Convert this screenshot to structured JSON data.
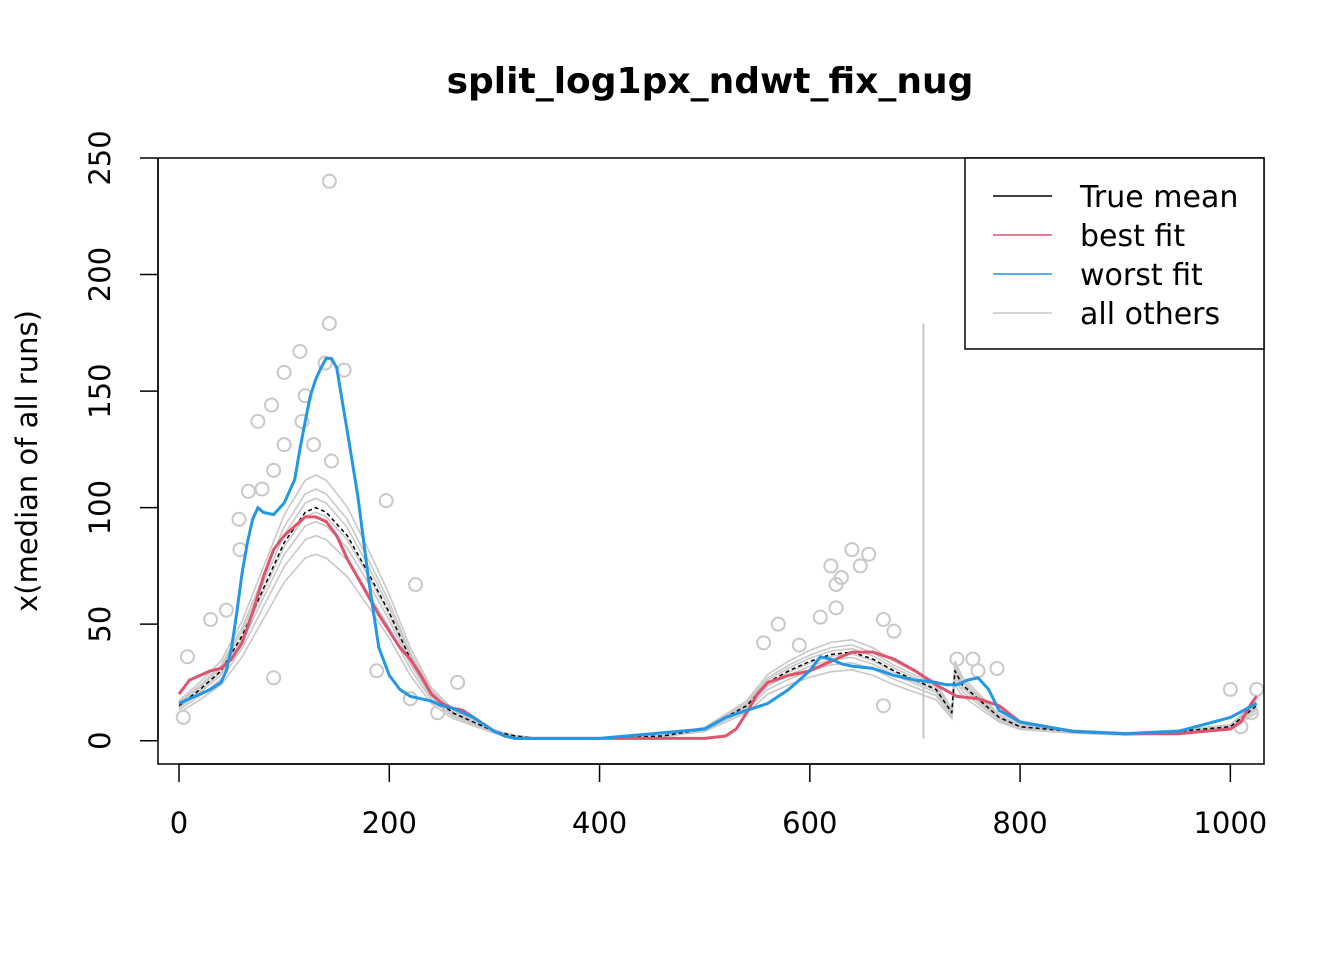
{
  "chart_data": {
    "type": "line",
    "title": "split_log1px_ndwt_fix_nug",
    "xlabel": "",
    "ylabel": "x(median of all runs)",
    "xlim": [
      -20,
      1032
    ],
    "ylim": [
      -10,
      250
    ],
    "x_ticks": [
      0,
      200,
      400,
      600,
      800,
      1000
    ],
    "y_ticks": [
      0,
      50,
      100,
      150,
      200,
      250
    ],
    "x_tick_labels": [
      "0",
      "200",
      "400",
      "600",
      "800",
      "1000"
    ],
    "y_tick_labels": [
      "0",
      "50",
      "100",
      "150",
      "200",
      "250"
    ],
    "grid": false,
    "legend_position": "top-right",
    "legend": [
      {
        "label": "True mean",
        "color": "#000000"
      },
      {
        "label": "best fit",
        "color": "#DF536B"
      },
      {
        "label": "worst fit",
        "color": "#2297E6"
      },
      {
        "label": "all others",
        "color": "#C8C8C8"
      }
    ],
    "series": [
      {
        "name": "True mean",
        "color": "#000000",
        "style": "dashed",
        "x": [
          0,
          20,
          40,
          60,
          80,
          100,
          120,
          130,
          140,
          160,
          180,
          200,
          220,
          240,
          260,
          280,
          300,
          320,
          340,
          400,
          460,
          500,
          540,
          560,
          580,
          600,
          620,
          640,
          660,
          680,
          700,
          720,
          735,
          738,
          745,
          760,
          780,
          800,
          850,
          900,
          950,
          1000,
          1025
        ],
        "y": [
          15,
          22,
          30,
          45,
          65,
          85,
          98,
          100,
          98,
          88,
          72,
          55,
          35,
          20,
          12,
          8,
          4,
          2,
          1,
          1,
          2,
          5,
          15,
          25,
          30,
          34,
          37,
          38,
          35,
          30,
          26,
          22,
          12,
          30,
          24,
          18,
          10,
          6,
          4,
          3,
          4,
          6,
          15
        ]
      },
      {
        "name": "best fit",
        "color": "#DF536B",
        "style": "solid",
        "x": [
          0,
          10,
          20,
          30,
          40,
          50,
          60,
          70,
          80,
          90,
          100,
          110,
          120,
          130,
          140,
          150,
          160,
          170,
          180,
          190,
          200,
          210,
          220,
          230,
          240,
          250,
          260,
          270,
          280,
          290,
          300,
          310,
          320,
          340,
          360,
          400,
          450,
          500,
          520,
          530,
          540,
          550,
          560,
          580,
          600,
          620,
          640,
          660,
          680,
          700,
          720,
          740,
          760,
          780,
          800,
          850,
          900,
          950,
          1000,
          1010,
          1015,
          1020,
          1025
        ],
        "y": [
          20,
          26,
          28,
          30,
          31,
          35,
          42,
          55,
          70,
          82,
          88,
          92,
          96,
          96,
          94,
          88,
          78,
          70,
          62,
          54,
          47,
          40,
          35,
          28,
          20,
          16,
          14,
          13,
          10,
          7,
          4,
          2,
          1,
          1,
          1,
          1,
          1,
          1,
          2,
          5,
          12,
          20,
          25,
          28,
          30,
          34,
          38,
          38,
          35,
          30,
          24,
          19,
          18,
          15,
          8,
          4,
          3,
          3,
          5,
          8,
          12,
          16,
          19
        ]
      },
      {
        "name": "worst fit",
        "color": "#2297E6",
        "style": "solid",
        "x": [
          0,
          10,
          20,
          30,
          40,
          45,
          50,
          55,
          60,
          65,
          70,
          75,
          80,
          90,
          100,
          110,
          115,
          120,
          125,
          130,
          135,
          140,
          145,
          150,
          160,
          170,
          180,
          190,
          200,
          210,
          220,
          230,
          240,
          250,
          260,
          270,
          280,
          290,
          300,
          310,
          320,
          340,
          360,
          400,
          450,
          500,
          520,
          540,
          560,
          580,
          600,
          610,
          620,
          630,
          640,
          660,
          680,
          700,
          720,
          730,
          740,
          750,
          760,
          770,
          780,
          800,
          850,
          900,
          950,
          1000,
          1025
        ],
        "y": [
          16,
          18,
          20,
          22,
          25,
          30,
          40,
          55,
          72,
          85,
          95,
          100,
          98,
          97,
          102,
          112,
          125,
          137,
          148,
          155,
          160,
          164,
          164,
          160,
          133,
          105,
          70,
          40,
          28,
          22,
          19,
          18,
          17,
          15,
          14,
          12,
          10,
          7,
          4,
          2,
          1,
          1,
          1,
          1,
          3,
          5,
          10,
          13,
          16,
          22,
          30,
          36,
          35,
          33,
          32,
          31,
          28,
          26,
          25,
          24,
          24,
          26,
          27,
          22,
          13,
          8,
          4,
          3,
          4,
          10,
          16
        ]
      }
    ],
    "others": {
      "name": "all others",
      "color": "#C8C8C8",
      "scatter": [
        {
          "x": 143,
          "y": 240
        },
        {
          "x": 143,
          "y": 179
        },
        {
          "x": 139,
          "y": 162
        },
        {
          "x": 157,
          "y": 159
        },
        {
          "x": 115,
          "y": 167
        },
        {
          "x": 100,
          "y": 158
        },
        {
          "x": 88,
          "y": 144
        },
        {
          "x": 120,
          "y": 148
        },
        {
          "x": 117,
          "y": 137
        },
        {
          "x": 75,
          "y": 137
        },
        {
          "x": 100,
          "y": 127
        },
        {
          "x": 128,
          "y": 127
        },
        {
          "x": 145,
          "y": 120
        },
        {
          "x": 90,
          "y": 116
        },
        {
          "x": 66,
          "y": 107
        },
        {
          "x": 79,
          "y": 108
        },
        {
          "x": 197,
          "y": 103
        },
        {
          "x": 57,
          "y": 95
        },
        {
          "x": 58,
          "y": 82
        },
        {
          "x": 90,
          "y": 27
        },
        {
          "x": 188,
          "y": 30
        },
        {
          "x": 225,
          "y": 67
        },
        {
          "x": 220,
          "y": 18
        },
        {
          "x": 246,
          "y": 12
        },
        {
          "x": 8,
          "y": 36
        },
        {
          "x": 4,
          "y": 10
        },
        {
          "x": 30,
          "y": 52
        },
        {
          "x": 45,
          "y": 56
        },
        {
          "x": 265,
          "y": 25
        },
        {
          "x": 556,
          "y": 42
        },
        {
          "x": 570,
          "y": 50
        },
        {
          "x": 590,
          "y": 41
        },
        {
          "x": 620,
          "y": 75
        },
        {
          "x": 625,
          "y": 67
        },
        {
          "x": 630,
          "y": 70
        },
        {
          "x": 640,
          "y": 82
        },
        {
          "x": 648,
          "y": 75
        },
        {
          "x": 656,
          "y": 80
        },
        {
          "x": 610,
          "y": 53
        },
        {
          "x": 625,
          "y": 57
        },
        {
          "x": 670,
          "y": 52
        },
        {
          "x": 680,
          "y": 47
        },
        {
          "x": 670,
          "y": 15
        },
        {
          "x": 740,
          "y": 35
        },
        {
          "x": 755,
          "y": 35
        },
        {
          "x": 778,
          "y": 31
        },
        {
          "x": 760,
          "y": 30
        },
        {
          "x": 1000,
          "y": 22
        },
        {
          "x": 1025,
          "y": 22
        },
        {
          "x": 1020,
          "y": 12
        },
        {
          "x": 1010,
          "y": 6
        }
      ],
      "curve_offsets": [
        -20,
        -12,
        -6,
        -2,
        4,
        8,
        14
      ],
      "spike": {
        "x": 708,
        "y_from": 1,
        "y_to": 179
      }
    }
  }
}
